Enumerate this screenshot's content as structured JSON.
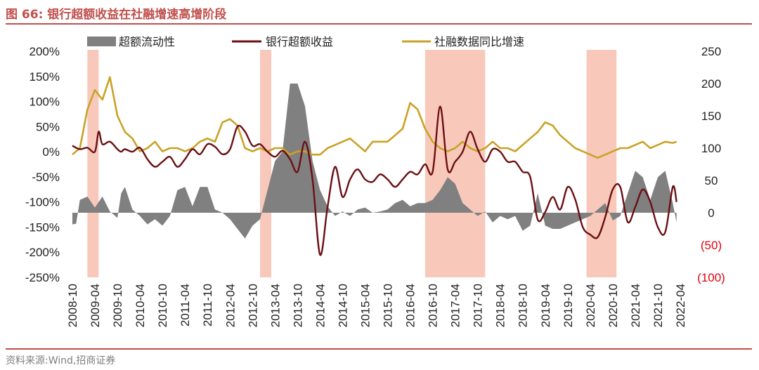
{
  "header": {
    "title": "图 66:  银行超额收益在社融增速高增阶段"
  },
  "footer": {
    "source": "资料来源:Wind,招商证券"
  },
  "colors": {
    "title": "#c0504d",
    "excess_liquidity": "#808080",
    "bank_excess_return": "#6b0f14",
    "tsf_growth": "#c9a227",
    "shading": "#f8c9bb",
    "negative_tick": "#e3000f"
  },
  "chart_data": {
    "type": "line",
    "title": "银行超额收益在社融增速高增阶段",
    "legend": [
      "超额流动性",
      "银行超额收益",
      "社融数据同比增速"
    ],
    "legend_position": "top",
    "left_axis": {
      "ylim": [
        -250,
        200
      ],
      "ticks": [
        200,
        150,
        100,
        50,
        0,
        -50,
        -100,
        -150,
        -200,
        -250
      ],
      "tick_labels": [
        "200%",
        "150%",
        "100%",
        "50%",
        "0%",
        "-50%",
        "-100%",
        "-150%",
        "-200%",
        "-250%"
      ]
    },
    "right_axis": {
      "ylim": [
        -100,
        250
      ],
      "ticks": [
        250,
        200,
        150,
        100,
        50,
        0,
        -50,
        -100
      ],
      "tick_labels": [
        "250",
        "200",
        "150",
        "100",
        "50",
        "0",
        "(50)",
        "(100)"
      ]
    },
    "x_tick_labels": [
      "2008-10",
      "2009-04",
      "2009-10",
      "2010-04",
      "2010-10",
      "2011-04",
      "2011-10",
      "2012-04",
      "2012-10",
      "2013-04",
      "2013-10",
      "2014-04",
      "2014-10",
      "2015-04",
      "2015-10",
      "2016-04",
      "2016-10",
      "2017-04",
      "2017-10",
      "2018-04",
      "2018-10",
      "2019-04",
      "2019-10",
      "2020-04",
      "2020-10",
      "2021-04",
      "2021-10",
      "2022-04"
    ],
    "x_range_months": [
      0,
      162
    ],
    "shaded_periods": [
      {
        "start": "2009-02",
        "end": "2009-05"
      },
      {
        "start": "2012-12",
        "end": "2013-03"
      },
      {
        "start": "2016-08",
        "end": "2017-12"
      },
      {
        "start": "2020-03",
        "end": "2020-11"
      }
    ],
    "series": [
      {
        "name": "超额流动性",
        "type": "area",
        "axis": "right",
        "x_months": [
          0,
          1,
          2,
          4,
          6,
          8,
          10,
          12,
          13,
          14,
          16,
          18,
          20,
          22,
          24,
          26,
          28,
          30,
          32,
          34,
          36,
          38,
          40,
          42,
          44,
          46,
          48,
          50,
          52,
          54,
          56,
          58,
          60,
          62,
          64,
          66,
          68,
          70,
          72,
          74,
          76,
          78,
          80,
          82,
          84,
          86,
          88,
          90,
          92,
          94,
          96,
          98,
          100,
          102,
          104,
          106,
          108,
          110,
          112,
          114,
          116,
          118,
          120,
          122,
          124,
          126,
          128,
          130,
          132,
          134,
          136,
          138,
          140,
          142,
          144,
          146,
          148,
          150,
          152,
          154,
          156,
          158,
          160,
          161
        ],
        "values": [
          -18,
          -17,
          20,
          25,
          8,
          25,
          2,
          -8,
          30,
          40,
          5,
          -5,
          -18,
          -10,
          -20,
          -5,
          35,
          40,
          10,
          40,
          40,
          5,
          0,
          -10,
          -25,
          -40,
          -20,
          -10,
          35,
          80,
          95,
          200,
          200,
          165,
          80,
          35,
          10,
          -5,
          2,
          -5,
          5,
          8,
          0,
          2,
          5,
          15,
          20,
          10,
          15,
          15,
          20,
          35,
          55,
          45,
          15,
          5,
          -5,
          2,
          -15,
          -5,
          -10,
          -5,
          -28,
          -20,
          30,
          -20,
          -25,
          -25,
          -20,
          -15,
          -10,
          -5,
          5,
          15,
          -12,
          -5,
          30,
          65,
          55,
          20,
          55,
          65,
          15,
          -15
        ],
        "smoothed": false
      },
      {
        "name": "银行超额收益",
        "type": "line",
        "axis": "left",
        "x_months": [
          0,
          2,
          4,
          6,
          7,
          8,
          10,
          12,
          13,
          14,
          16,
          18,
          20,
          22,
          24,
          26,
          28,
          30,
          32,
          34,
          36,
          38,
          40,
          42,
          44,
          46,
          48,
          50,
          52,
          54,
          56,
          58,
          60,
          62,
          64,
          66,
          68,
          70,
          72,
          74,
          76,
          78,
          80,
          82,
          84,
          86,
          88,
          90,
          92,
          94,
          96,
          98,
          100,
          102,
          104,
          106,
          108,
          110,
          112,
          114,
          116,
          118,
          120,
          122,
          124,
          126,
          128,
          130,
          132,
          134,
          136,
          138,
          140,
          142,
          144,
          146,
          148,
          150,
          152,
          154,
          156,
          158,
          160,
          161
        ],
        "values": [
          12,
          5,
          8,
          0,
          40,
          15,
          20,
          5,
          0,
          5,
          0,
          8,
          -15,
          -30,
          -20,
          -10,
          -30,
          -15,
          5,
          -5,
          15,
          10,
          -5,
          5,
          50,
          40,
          12,
          15,
          0,
          -10,
          2,
          -15,
          -40,
          20,
          -55,
          -205,
          -110,
          -30,
          -90,
          -55,
          -35,
          -55,
          -60,
          -45,
          -55,
          -70,
          -55,
          -40,
          -45,
          -25,
          -40,
          90,
          -35,
          -20,
          0,
          40,
          5,
          -20,
          5,
          0,
          -20,
          -20,
          -40,
          -50,
          -135,
          -120,
          -90,
          -115,
          -70,
          -95,
          -150,
          -165,
          -170,
          -130,
          -75,
          -70,
          -140,
          -110,
          -75,
          -100,
          -150,
          -160,
          -70,
          -100
        ],
        "smoothed": true
      },
      {
        "name": "社融数据同比增速",
        "type": "line",
        "axis": "right",
        "x_months": [
          0,
          2,
          4,
          6,
          8,
          10,
          12,
          14,
          16,
          18,
          20,
          22,
          24,
          26,
          28,
          30,
          32,
          34,
          36,
          38,
          40,
          42,
          44,
          46,
          48,
          50,
          52,
          54,
          56,
          58,
          60,
          62,
          64,
          66,
          68,
          70,
          72,
          74,
          76,
          78,
          80,
          82,
          84,
          86,
          88,
          90,
          92,
          94,
          96,
          98,
          100,
          102,
          104,
          106,
          108,
          110,
          112,
          114,
          116,
          118,
          120,
          122,
          124,
          126,
          128,
          130,
          132,
          134,
          136,
          138,
          140,
          142,
          144,
          146,
          148,
          150,
          152,
          154,
          156,
          158,
          160,
          161
        ],
        "values": [
          90,
          100,
          160,
          190,
          175,
          210,
          150,
          125,
          115,
          95,
          100,
          110,
          95,
          100,
          100,
          95,
          100,
          110,
          115,
          110,
          140,
          145,
          135,
          100,
          95,
          100,
          95,
          100,
          100,
          90,
          95,
          95,
          90,
          90,
          100,
          105,
          110,
          115,
          105,
          95,
          110,
          110,
          110,
          120,
          130,
          170,
          160,
          130,
          110,
          100,
          95,
          100,
          110,
          100,
          95,
          100,
          110,
          100,
          100,
          95,
          105,
          115,
          125,
          140,
          135,
          120,
          110,
          100,
          95,
          90,
          85,
          90,
          95,
          100,
          100,
          105,
          110,
          100,
          105,
          110,
          108,
          110
        ],
        "smoothed": false
      }
    ]
  }
}
